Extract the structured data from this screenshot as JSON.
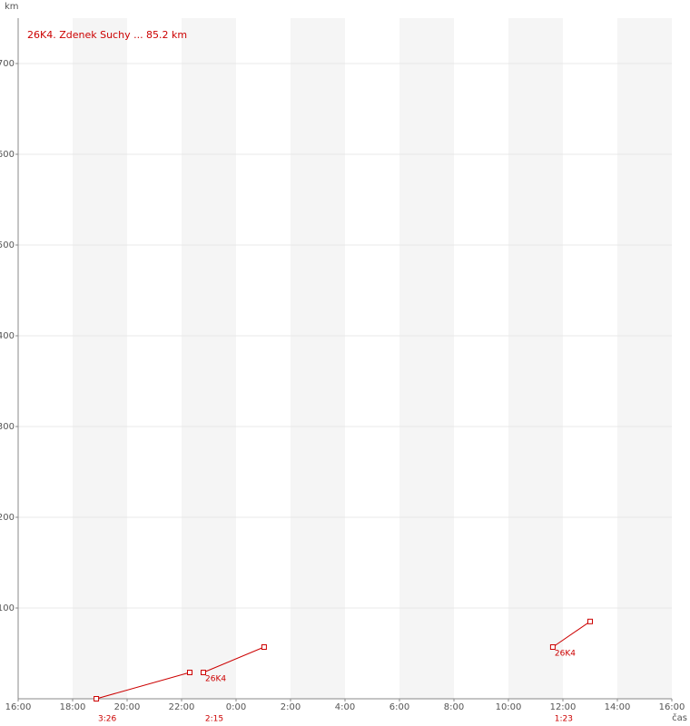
{
  "chart_data": {
    "type": "line",
    "title": "26K4. Zdenek Suchy ... 85.2 km",
    "y_label": "km",
    "x_label": "čas",
    "color": "#cc0000",
    "xlim": [
      16,
      40
    ],
    "ylim": [
      0,
      750
    ],
    "xticks": [
      {
        "value": 16,
        "label": "16:00"
      },
      {
        "value": 18,
        "label": "18:00"
      },
      {
        "value": 20,
        "label": "20:00"
      },
      {
        "value": 22,
        "label": "22:00"
      },
      {
        "value": 24,
        "label": "0:00"
      },
      {
        "value": 26,
        "label": "2:00"
      },
      {
        "value": 28,
        "label": "4:00"
      },
      {
        "value": 30,
        "label": "6:00"
      },
      {
        "value": 32,
        "label": "8:00"
      },
      {
        "value": 34,
        "label": "10:00"
      },
      {
        "value": 36,
        "label": "12:00"
      },
      {
        "value": 38,
        "label": "14:00"
      },
      {
        "value": 40,
        "label": "16:00"
      }
    ],
    "yticks": [
      100,
      200,
      300,
      400,
      500,
      600,
      700
    ],
    "grid": true,
    "segments": [
      {
        "x": [
          18.87,
          22.3
        ],
        "values": [
          0,
          29
        ],
        "duration": "3:26"
      },
      {
        "x": [
          22.8,
          25.03
        ],
        "values": [
          29,
          57
        ],
        "duration": "2:15",
        "label": "26K4"
      },
      {
        "x": [
          35.63,
          37.0
        ],
        "values": [
          57,
          85.2
        ],
        "duration": "1:23",
        "label": "26K4"
      }
    ]
  }
}
